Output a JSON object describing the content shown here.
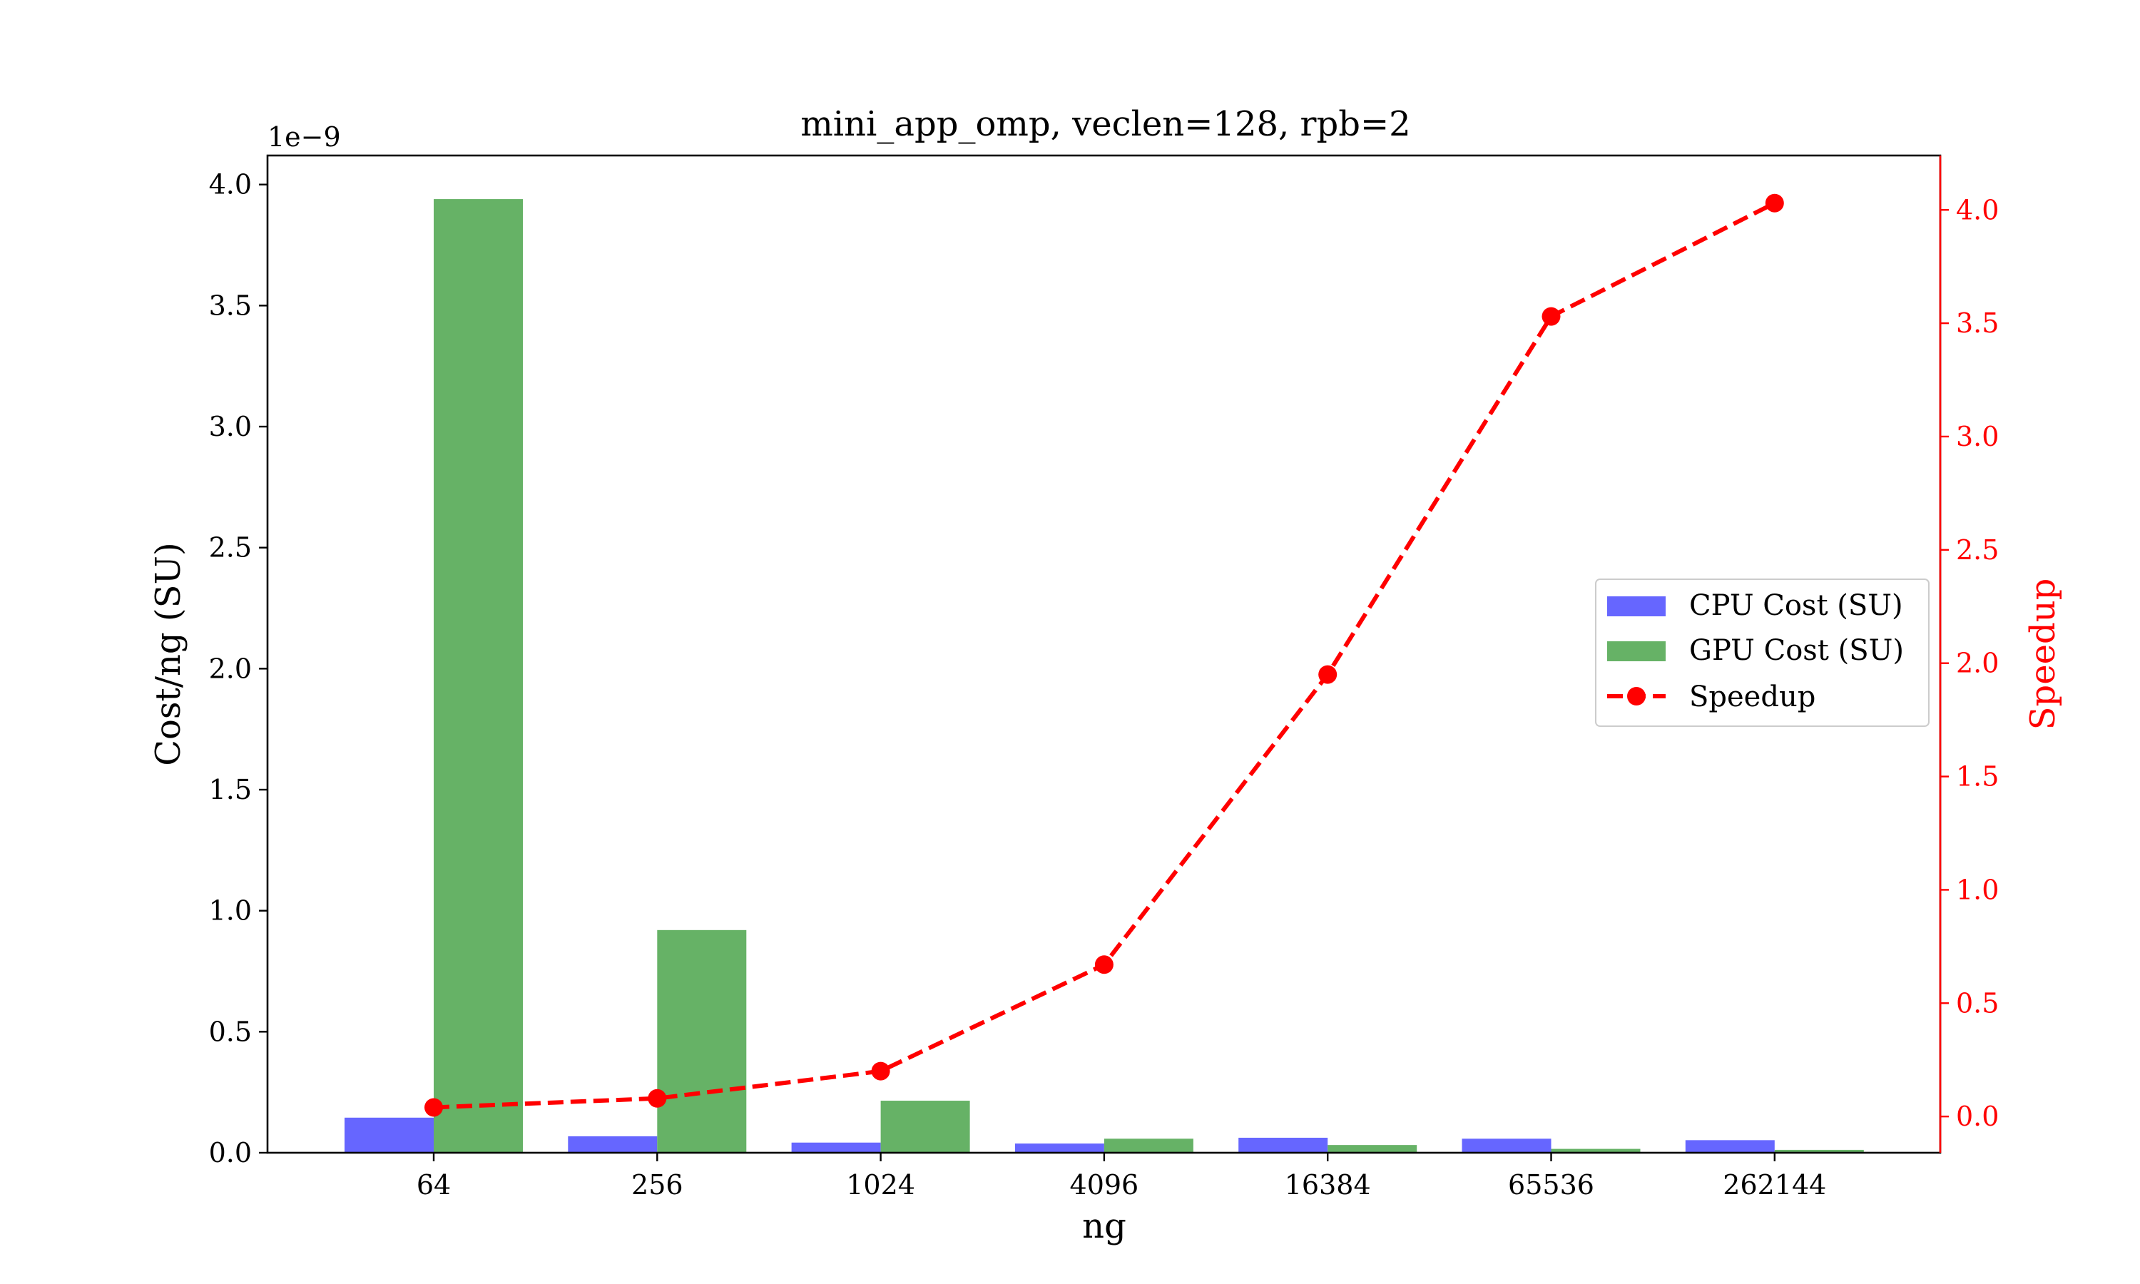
{
  "chart_data": {
    "type": "bar",
    "title": "mini_app_omp, veclen=128, rpb=2",
    "xlabel": "ng",
    "ylabel": "Cost/ng (SU)",
    "y_offset_text": "1e−9",
    "y2label": "Speedup",
    "categories": [
      "64",
      "256",
      "1024",
      "4096",
      "16384",
      "65536",
      "262144"
    ],
    "ylim": [
      0,
      4.12
    ],
    "yticks": [
      "0.0",
      "0.5",
      "1.0",
      "1.5",
      "2.0",
      "2.5",
      "3.0",
      "3.5",
      "4.0"
    ],
    "y2lim": [
      -0.16,
      4.24
    ],
    "y2ticks": [
      "0.0",
      "0.5",
      "1.0",
      "1.5",
      "2.0",
      "2.5",
      "3.0",
      "3.5",
      "4.0"
    ],
    "series": [
      {
        "name": "CPU Cost (SU)",
        "kind": "bar",
        "axis": "left",
        "color": "#6666ff",
        "values": [
          0.145,
          0.068,
          0.042,
          0.038,
          0.062,
          0.058,
          0.052
        ]
      },
      {
        "name": "GPU Cost (SU)",
        "kind": "bar",
        "axis": "left",
        "color": "#66b266",
        "values": [
          3.94,
          0.92,
          0.215,
          0.058,
          0.032,
          0.016,
          0.012
        ]
      },
      {
        "name": "Speedup",
        "kind": "line",
        "axis": "right",
        "color": "#ff0000",
        "style": "dashed",
        "marker": "circle",
        "values": [
          0.04,
          0.08,
          0.2,
          0.67,
          1.95,
          3.53,
          4.03
        ]
      }
    ],
    "grid": false,
    "legend_position": "center-right",
    "colors": {
      "axis": "#000000",
      "secondary_axis": "#ff0000"
    }
  }
}
